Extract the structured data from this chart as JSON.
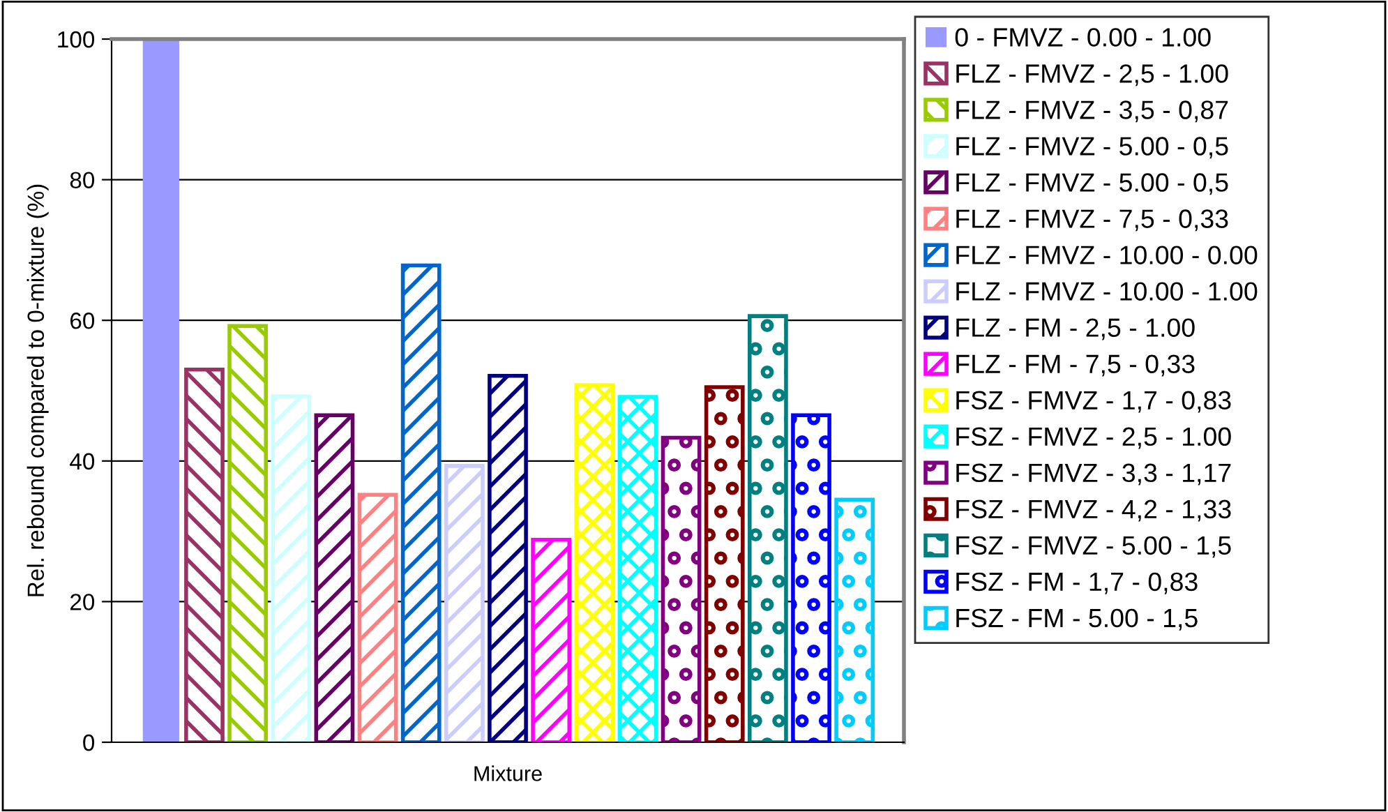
{
  "chart_data": {
    "type": "bar",
    "ylabel": "Rel. rebound compared to 0-mixture (%)",
    "categories": [
      "Mixture"
    ],
    "ylim": [
      0,
      100
    ],
    "yticks": [
      0,
      20,
      40,
      60,
      80,
      100
    ],
    "grid": "y",
    "legend": "right",
    "series": [
      {
        "name": "0 - FMVZ - 0.00 - 1.00",
        "color": "#9999ff",
        "values": [
          100
        ]
      },
      {
        "name": "FLZ - FMVZ - 2,5 - 1.00",
        "color": "#993366",
        "values": [
          53
        ]
      },
      {
        "name": "FLZ - FMVZ - 3,5 - 0,87",
        "color": "#99cc00",
        "values": [
          59.2
        ]
      },
      {
        "name": "FLZ - FMVZ - 5.00 - 0,5",
        "color": "#ccffff",
        "values": [
          49.2
        ]
      },
      {
        "name": "FLZ - FMVZ - 5.00 - 0,5",
        "color": "#660066",
        "values": [
          46.5
        ]
      },
      {
        "name": "FLZ - FMVZ - 7,5 - 0,33",
        "color": "#ff8080",
        "values": [
          35.2
        ]
      },
      {
        "name": "FLZ - FMVZ - 10.00 - 0.00",
        "color": "#0066cc",
        "values": [
          67.8
        ]
      },
      {
        "name": "FLZ - FMVZ - 10.00 - 1.00",
        "color": "#ccccff",
        "values": [
          39.3
        ]
      },
      {
        "name": "FLZ - FM - 2,5 - 1.00",
        "color": "#000080",
        "values": [
          52.1
        ]
      },
      {
        "name": "FLZ - FM - 7,5 - 0,33",
        "color": "#ff00ff",
        "values": [
          28.8
        ]
      },
      {
        "name": "FSZ - FMVZ - 1,7 - 0,83",
        "color": "#ffff00",
        "values": [
          50.8
        ]
      },
      {
        "name": "FSZ - FMVZ - 2,5 - 1.00",
        "color": "#00ffff",
        "values": [
          49.1
        ]
      },
      {
        "name": "FSZ - FMVZ - 3,3 - 1,17",
        "color": "#800080",
        "values": [
          43.3
        ]
      },
      {
        "name": "FSZ - FMVZ - 4,2 - 1,33",
        "color": "#800000",
        "values": [
          50.5
        ]
      },
      {
        "name": "FSZ - FMVZ - 5.00 - 1,5",
        "color": "#008080",
        "values": [
          60.6
        ]
      },
      {
        "name": "FSZ - FM - 1,7 - 0,83",
        "color": "#0000ff",
        "values": [
          46.5
        ]
      },
      {
        "name": "FSZ - FM - 5.00 - 1,5",
        "color": "#00ccff",
        "values": [
          34.5
        ]
      }
    ]
  }
}
